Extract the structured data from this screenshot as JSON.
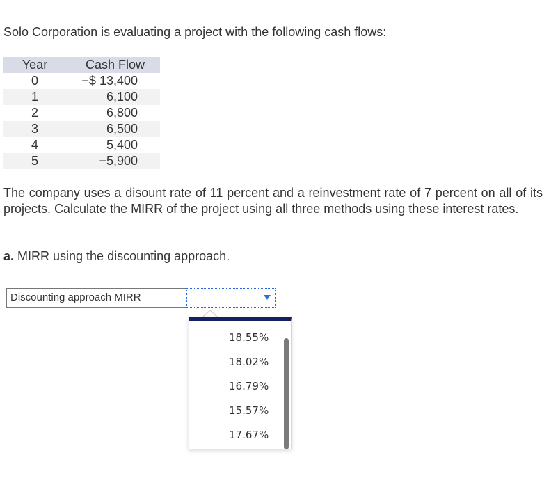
{
  "question": {
    "intro": "Solo Corporation is evaluating a project with the following cash flows:",
    "paragraph": "The company uses a disount rate of 11 percent and a reinvestment rate of 7 percent on all of its projects. Calculate the MIRR of the project using all three methods using these interest rates.",
    "part_a_letter": "a.",
    "part_a_text": " MIRR using the discounting approach."
  },
  "cash_flow_table": {
    "headers": [
      "Year",
      "Cash Flow"
    ],
    "rows": [
      {
        "year": "0",
        "cash": "−$ 13,400"
      },
      {
        "year": "1",
        "cash": "6,100"
      },
      {
        "year": "2",
        "cash": "6,800"
      },
      {
        "year": "3",
        "cash": "6,500"
      },
      {
        "year": "4",
        "cash": "5,400"
      },
      {
        "year": "5",
        "cash": "−5,900"
      }
    ]
  },
  "answer": {
    "label": "Discounting approach MIRR",
    "selected_value": "",
    "arrow_icon": "triangle-down-icon",
    "options": [
      "18.55%",
      "18.02%",
      "16.79%",
      "15.57%",
      "17.67%"
    ]
  },
  "colors": {
    "table_header_bg": "#d9dce6",
    "dropdown_top_bar": "#14215e",
    "select_border": "#2563eb",
    "arrow": "#2f6fd6"
  }
}
